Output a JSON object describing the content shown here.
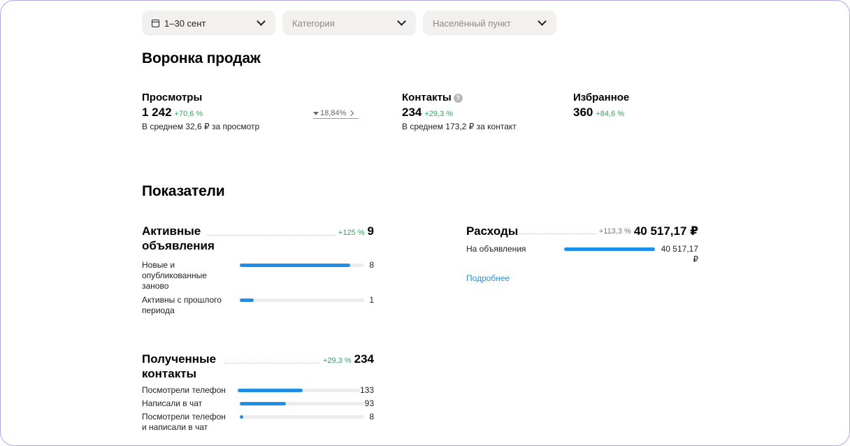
{
  "filters": {
    "period": "1–30 сент",
    "category_placeholder": "Категория",
    "location_placeholder": "Населённый пункт"
  },
  "funnel": {
    "title": "Воронка продаж",
    "views": {
      "title": "Просмотры",
      "value": "1 242",
      "delta": "+70,6 %",
      "sub": "В среднем 32,6 ₽ за просмотр"
    },
    "conversion": "18,84%",
    "contacts": {
      "title": "Контакты",
      "value": "234",
      "delta": "+29,3 %",
      "sub": "В среднем 173,2 ₽ за контакт"
    },
    "favorites": {
      "title": "Избранное",
      "value": "360",
      "delta": "+84,6 %"
    }
  },
  "indicators": {
    "title": "Показатели",
    "active_ads": {
      "title": "Активные объявления",
      "delta": "+125 %",
      "total": "9",
      "rows": [
        {
          "label": "Новые и опубликованные заново",
          "value": "8",
          "fill": 0.89
        },
        {
          "label": "Активны с прошлого периода",
          "value": "1",
          "fill": 0.11
        }
      ]
    },
    "expenses": {
      "title": "Расходы",
      "delta": "+113,3 %",
      "total": "40 517,17 ₽",
      "rows": [
        {
          "label": "На объявления",
          "value": "40 517,17 ₽",
          "fill": 1.0
        }
      ],
      "more_link": "Подробнее"
    },
    "contacts": {
      "title": "Полученные контакты",
      "delta": "+29,3 %",
      "total": "234",
      "rows": [
        {
          "label": "Посмотрели телефон",
          "value": "133",
          "fill": 0.53
        },
        {
          "label": "Написали в чат",
          "value": "93",
          "fill": 0.37
        },
        {
          "label": "Посмотрели телефон и написали в чат",
          "value": "8",
          "fill": 0.03
        }
      ]
    }
  }
}
